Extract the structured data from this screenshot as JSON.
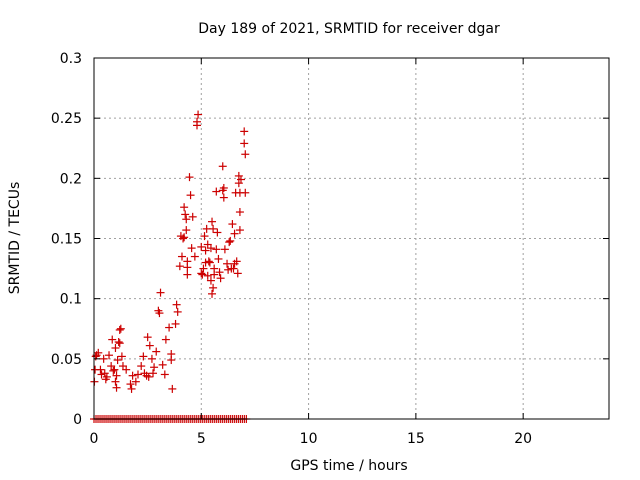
{
  "chart_data": {
    "type": "scatter",
    "title": "Day 189 of 2021, SRMTID for receiver dgar",
    "xlabel": "GPS time / hours",
    "ylabel": "SRMTID / TECUs",
    "xlim": [
      0,
      24
    ],
    "ylim": [
      0,
      0.3
    ],
    "xticks": [
      0,
      5,
      10,
      15,
      20
    ],
    "yticks": [
      0,
      0.05,
      0.1,
      0.15,
      0.2,
      0.25,
      0.3
    ],
    "xtick_labels": [
      "0",
      "5",
      "10",
      "15",
      "20"
    ],
    "ytick_labels": [
      "0",
      "0.05",
      "0.1",
      "0.15",
      "0.2",
      "0.25",
      "0.3"
    ],
    "grid": true,
    "marker": "plus",
    "color": "#cc0000",
    "series": [
      {
        "points": [
          [
            0.02,
            0.031
          ],
          [
            0.05,
            0.041
          ],
          [
            0.08,
            0.052
          ],
          [
            0.12,
            0.053
          ],
          [
            0.2,
            0.055
          ],
          [
            0.3,
            0.041
          ],
          [
            0.35,
            0.037
          ],
          [
            0.45,
            0.05
          ],
          [
            0.5,
            0.038
          ],
          [
            0.55,
            0.033
          ],
          [
            0.6,
            0.035
          ],
          [
            0.7,
            0.053
          ],
          [
            0.8,
            0.044
          ],
          [
            0.85,
            0.066
          ],
          [
            0.9,
            0.04
          ],
          [
            0.95,
            0.041
          ],
          [
            1.0,
            0.059
          ],
          [
            1.0,
            0.031
          ],
          [
            1.05,
            0.036
          ],
          [
            1.05,
            0.026
          ],
          [
            1.1,
            0.049
          ],
          [
            1.15,
            0.064
          ],
          [
            1.2,
            0.063
          ],
          [
            1.2,
            0.074
          ],
          [
            1.25,
            0.075
          ],
          [
            1.3,
            0.052
          ],
          [
            1.35,
            0.044
          ],
          [
            1.5,
            0.041
          ],
          [
            1.7,
            0.029
          ],
          [
            1.75,
            0.025
          ],
          [
            1.8,
            0.036
          ],
          [
            1.95,
            0.031
          ],
          [
            2.05,
            0.037
          ],
          [
            2.2,
            0.044
          ],
          [
            2.3,
            0.052
          ],
          [
            2.35,
            0.038
          ],
          [
            2.45,
            0.036
          ],
          [
            2.5,
            0.068
          ],
          [
            2.55,
            0.035
          ],
          [
            2.6,
            0.061
          ],
          [
            2.7,
            0.05
          ],
          [
            2.75,
            0.038
          ],
          [
            2.8,
            0.043
          ],
          [
            2.9,
            0.056
          ],
          [
            3.0,
            0.09
          ],
          [
            3.05,
            0.088
          ],
          [
            3.1,
            0.105
          ],
          [
            3.2,
            0.045
          ],
          [
            3.3,
            0.037
          ],
          [
            3.35,
            0.066
          ],
          [
            3.5,
            0.076
          ],
          [
            3.6,
            0.054
          ],
          [
            3.6,
            0.049
          ],
          [
            3.65,
            0.025
          ],
          [
            3.8,
            0.079
          ],
          [
            3.85,
            0.095
          ],
          [
            3.9,
            0.089
          ],
          [
            4.0,
            0.127
          ],
          [
            4.05,
            0.152
          ],
          [
            4.1,
            0.135
          ],
          [
            4.15,
            0.15
          ],
          [
            4.2,
            0.176
          ],
          [
            4.2,
            0.151
          ],
          [
            4.25,
            0.17
          ],
          [
            4.3,
            0.166
          ],
          [
            4.3,
            0.157
          ],
          [
            4.35,
            0.12
          ],
          [
            4.35,
            0.126
          ],
          [
            4.35,
            0.131
          ],
          [
            4.45,
            0.201
          ],
          [
            4.5,
            0.186
          ],
          [
            4.55,
            0.142
          ],
          [
            4.6,
            0.168
          ],
          [
            4.7,
            0.135
          ],
          [
            4.8,
            0.247
          ],
          [
            4.8,
            0.244
          ],
          [
            4.85,
            0.253
          ],
          [
            5.0,
            0.143
          ],
          [
            5.0,
            0.121
          ],
          [
            5.05,
            0.12
          ],
          [
            5.1,
            0.125
          ],
          [
            5.15,
            0.152
          ],
          [
            5.2,
            0.14
          ],
          [
            5.2,
            0.13
          ],
          [
            5.25,
            0.158
          ],
          [
            5.3,
            0.145
          ],
          [
            5.3,
            0.119
          ],
          [
            5.35,
            0.131
          ],
          [
            5.4,
            0.13
          ],
          [
            5.45,
            0.142
          ],
          [
            5.45,
            0.115
          ],
          [
            5.5,
            0.164
          ],
          [
            5.5,
            0.104
          ],
          [
            5.55,
            0.158
          ],
          [
            5.55,
            0.109
          ],
          [
            5.6,
            0.12
          ],
          [
            5.6,
            0.125
          ],
          [
            5.7,
            0.141
          ],
          [
            5.7,
            0.189
          ],
          [
            5.75,
            0.155
          ],
          [
            5.8,
            0.133
          ],
          [
            5.85,
            0.122
          ],
          [
            5.9,
            0.117
          ],
          [
            6.0,
            0.21
          ],
          [
            6.0,
            0.19
          ],
          [
            6.05,
            0.192
          ],
          [
            6.05,
            0.184
          ],
          [
            6.1,
            0.141
          ],
          [
            6.2,
            0.129
          ],
          [
            6.25,
            0.124
          ],
          [
            6.3,
            0.147
          ],
          [
            6.35,
            0.148
          ],
          [
            6.4,
            0.125
          ],
          [
            6.45,
            0.162
          ],
          [
            6.5,
            0.125
          ],
          [
            6.55,
            0.129
          ],
          [
            6.55,
            0.154
          ],
          [
            6.6,
            0.188
          ],
          [
            6.65,
            0.131
          ],
          [
            6.7,
            0.121
          ],
          [
            6.75,
            0.202
          ],
          [
            6.75,
            0.196
          ],
          [
            6.8,
            0.157
          ],
          [
            6.8,
            0.172
          ],
          [
            6.8,
            0.188
          ],
          [
            6.85,
            0.199
          ],
          [
            7.0,
            0.239
          ],
          [
            7.0,
            0.229
          ],
          [
            7.05,
            0.22
          ],
          [
            7.05,
            0.188
          ]
        ],
        "zero_band_x": [
          0.0,
          7.1
        ],
        "zero_band_y": 0
      }
    ]
  }
}
